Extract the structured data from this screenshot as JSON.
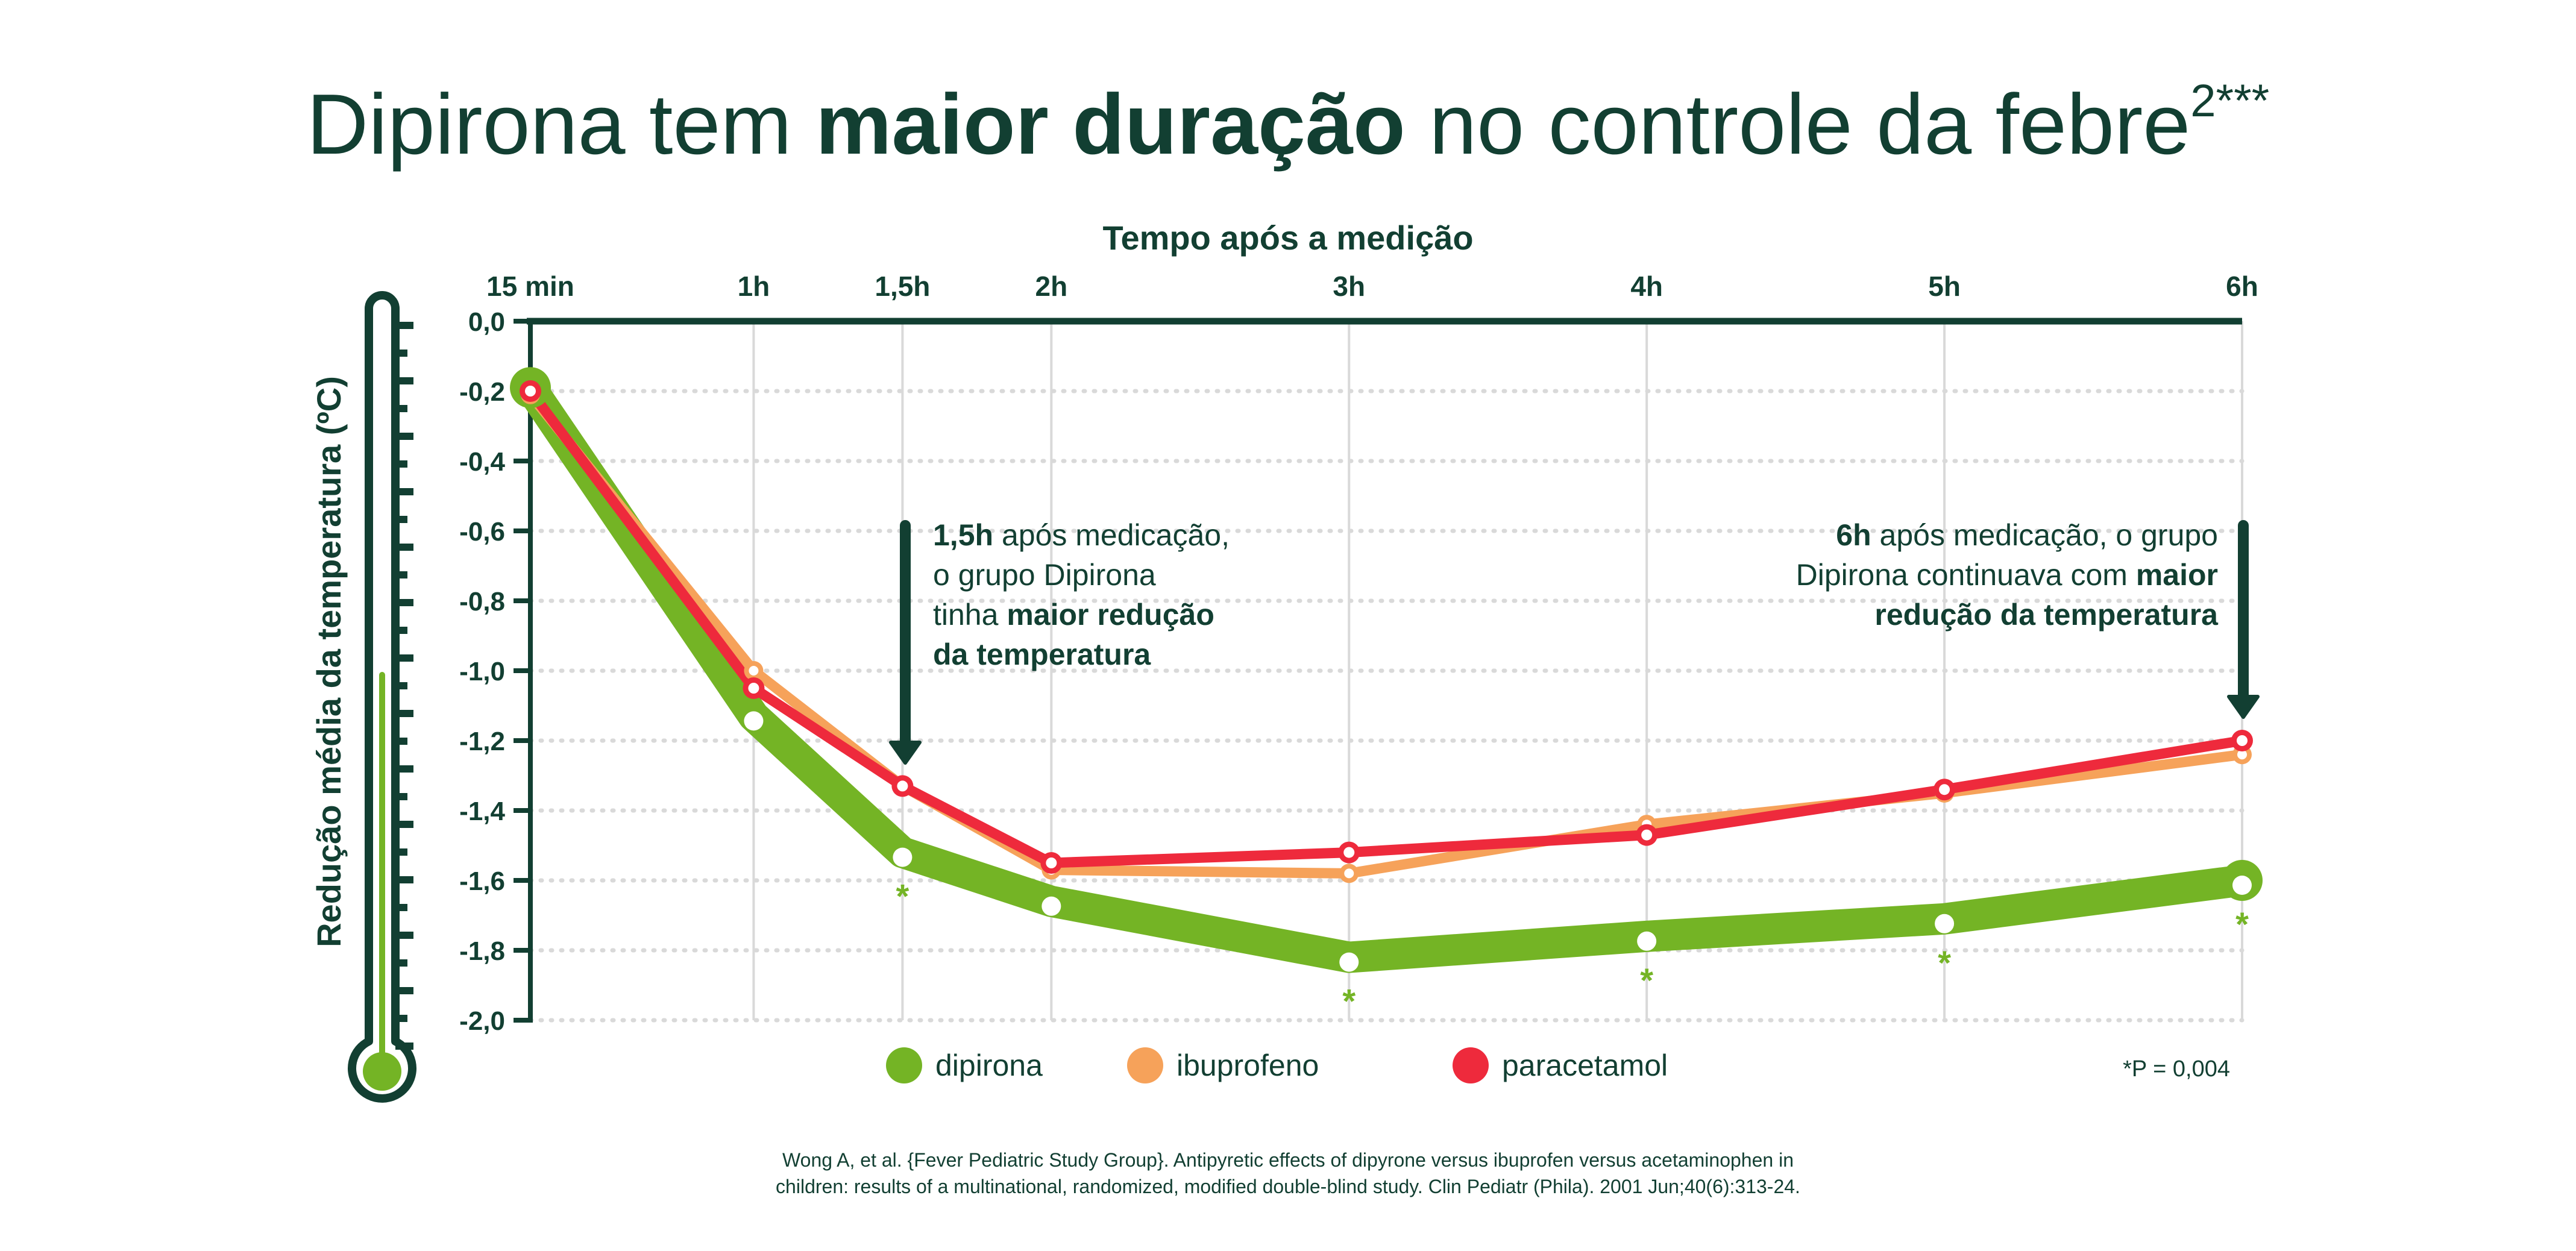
{
  "colors": {
    "dark": "#123f32",
    "grid": "#d9d9d9",
    "dipirona": "#74b425",
    "ibuprofeno": "#f6a25a",
    "paracetamol": "#ee2a3c"
  },
  "chart_data": {
    "type": "line",
    "title": {
      "prefix": "Dipirona tem ",
      "bold": "maior duração",
      "suffix": " no controle da febre",
      "sup": "2***"
    },
    "xlabel": "Tempo após a medição",
    "ylabel": "Redução média da temperatura (ºC)",
    "x": [
      0.25,
      1,
      1.5,
      2,
      3,
      4,
      5,
      6
    ],
    "x_tick_labels": [
      "15 min",
      "1h",
      "1,5h",
      "2h",
      "3h",
      "4h",
      "5h",
      "6h"
    ],
    "ylim": [
      -2.0,
      0.0
    ],
    "y_ticks": [
      0.0,
      -0.2,
      -0.4,
      -0.6,
      -0.8,
      -1.0,
      -1.2,
      -1.4,
      -1.6,
      -1.8,
      -2.0
    ],
    "y_tick_labels": [
      "0,0",
      "-0,2",
      "-0,4",
      "-0,6",
      "-0,8",
      "-1,0",
      "-1,2",
      "-1,4",
      "-1,6",
      "-1,8",
      "-2,0"
    ],
    "series": [
      {
        "name": "dipirona",
        "values": [
          -0.19,
          -1.13,
          -1.52,
          -1.66,
          -1.82,
          -1.76,
          -1.71,
          -1.6
        ]
      },
      {
        "name": "ibuprofeno",
        "values": [
          -0.21,
          -1.0,
          -1.33,
          -1.57,
          -1.58,
          -1.44,
          -1.35,
          -1.24
        ]
      },
      {
        "name": "paracetamol",
        "values": [
          -0.2,
          -1.05,
          -1.33,
          -1.55,
          -1.52,
          -1.47,
          -1.34,
          -1.2
        ]
      }
    ],
    "significance_marker": "*",
    "significance_x": [
      1.5,
      3,
      4,
      5,
      6
    ],
    "legend": [
      "dipirona",
      "ibuprofeno",
      "paracetamol"
    ],
    "p_value_note": "*P = 0,004",
    "annotations": [
      {
        "x": 1.5,
        "lines": [
          [
            {
              "t": "1,5h",
              "b": true
            },
            {
              "t": " após medicação,",
              "b": false
            }
          ],
          [
            {
              "t": "o grupo Dipirona",
              "b": false
            }
          ],
          [
            {
              "t": "tinha ",
              "b": false
            },
            {
              "t": "maior redução",
              "b": true
            }
          ],
          [
            {
              "t": "da temperatura",
              "b": true
            }
          ]
        ]
      },
      {
        "x": 6,
        "lines": [
          [
            {
              "t": "6h",
              "b": true
            },
            {
              "t": " após medicação, o grupo",
              "b": false
            }
          ],
          [
            {
              "t": "Dipirona continuava com ",
              "b": false
            },
            {
              "t": "maior",
              "b": true
            }
          ],
          [
            {
              "t": "redução da temperatura",
              "b": true
            }
          ]
        ]
      }
    ],
    "citation": [
      "Wong A, et al. {Fever Pediatric Study Group}. Antipyretic effects of dipyrone versus ibuprofen versus acetaminophen in",
      "children: results of a multinational, randomized, modified double-blind study. Clin Pediatr (Phila). 2001 Jun;40(6):313-24."
    ]
  }
}
